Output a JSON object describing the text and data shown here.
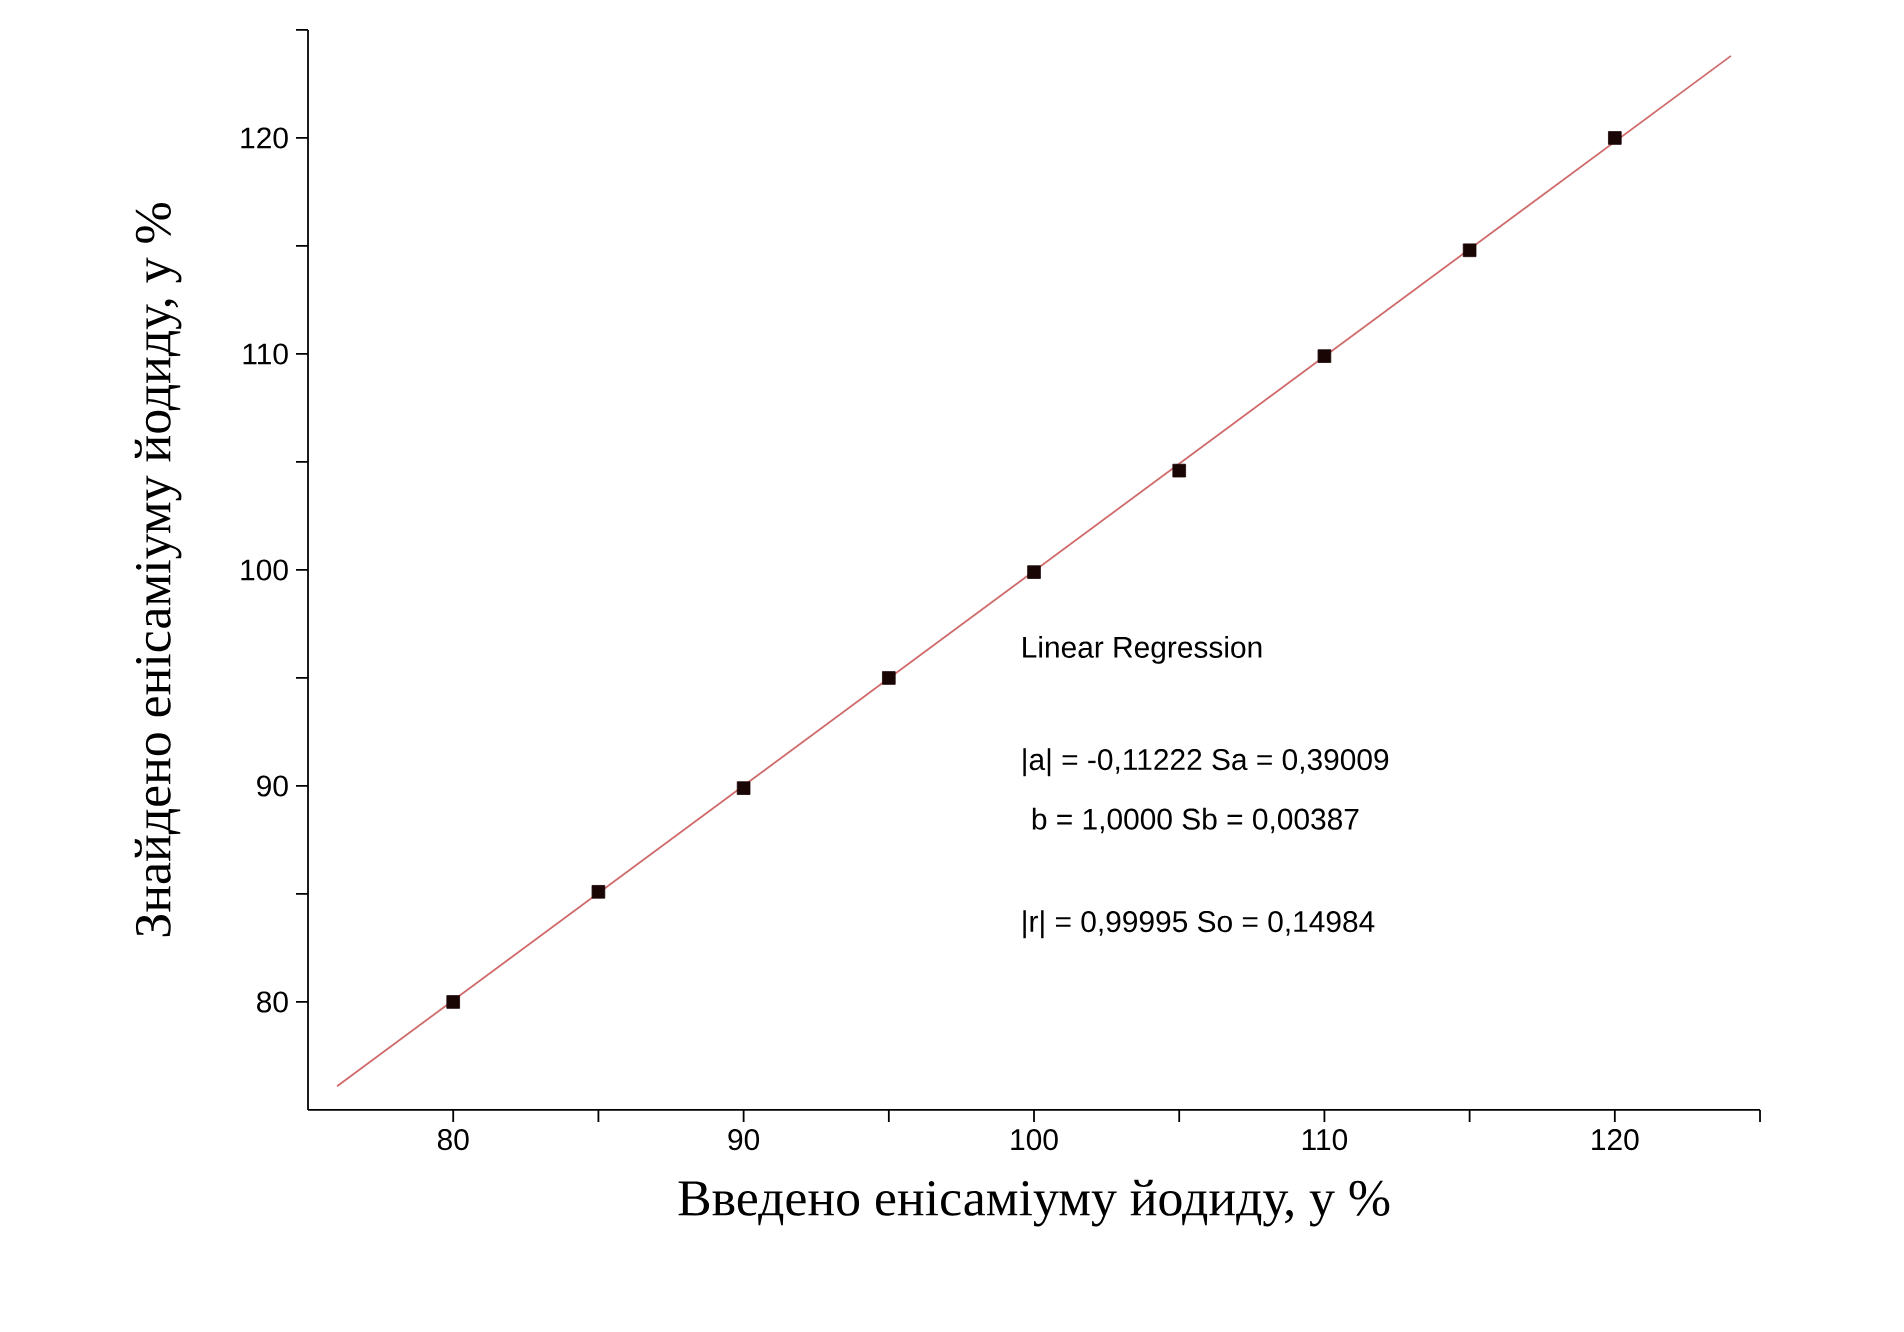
{
  "chart_data": {
    "type": "scatter",
    "xlabel": "Введено енісаміуму йодиду, у %",
    "ylabel": "Знайдено енісаміуму йодиду, у %",
    "x": [
      80,
      85,
      90,
      95,
      100,
      105,
      110,
      115,
      120
    ],
    "series": [
      {
        "color": "#1a0505",
        "marker": "square",
        "values": [
          80.0,
          85.1,
          89.9,
          95.0,
          99.9,
          104.6,
          109.9,
          114.8,
          120.0
        ]
      },
      {
        "type": "line",
        "color": "#d06a6a",
        "marker": "none",
        "line_style": "solid",
        "x": [
          76,
          124
        ],
        "values": [
          76.1,
          123.8
        ]
      }
    ],
    "xlim": [
      75,
      125
    ],
    "ylim": [
      75,
      125
    ],
    "xticks": [
      80,
      {
        "value": 85,
        "label": null
      },
      90,
      {
        "value": 95,
        "label": null
      },
      100,
      {
        "value": 105,
        "label": null
      },
      110,
      {
        "value": 115,
        "label": null
      },
      120,
      {
        "value": 125,
        "label": null
      }
    ],
    "yticks": [
      80,
      {
        "value": 85,
        "label": null
      },
      90,
      {
        "value": 95,
        "label": null
      },
      100,
      {
        "value": 105,
        "label": null
      },
      110,
      {
        "value": 115,
        "label": null
      },
      120,
      {
        "value": 125,
        "label": null
      }
    ],
    "annotations": [
      "Linear Regression",
      "|a| = -0,11222   Sa = 0,39009",
      "b  =  1,0000    Sb = 0,00387",
      "|r| = 0,99995     So = 0,14984"
    ],
    "grid": false
  }
}
